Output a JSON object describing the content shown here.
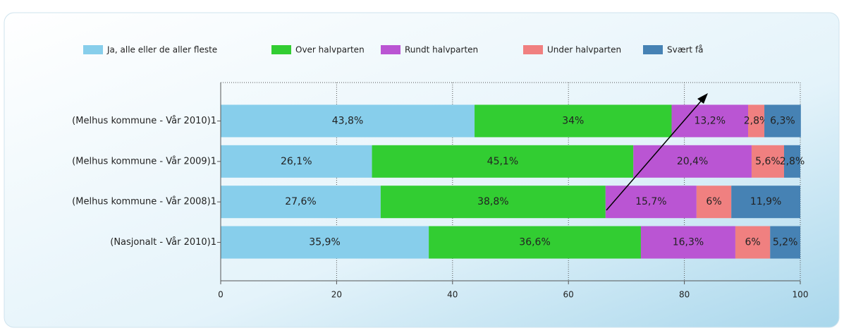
{
  "chart_data": {
    "type": "bar",
    "orientation": "horizontal",
    "stacked": true,
    "categories": [
      "(Melhus kommune - Vår 2010)1",
      "(Melhus kommune - Vår 2009)1",
      "(Melhus kommune - Vår 2008)1",
      "(Nasjonalt - Vår 2010)1"
    ],
    "series": [
      {
        "name": "Ja, alle eller de aller fleste",
        "color": "#87ceeb",
        "values": [
          43.8,
          26.1,
          27.6,
          35.9
        ],
        "value_labels": [
          "43,8%",
          "26,1%",
          "27,6%",
          "35,9%"
        ]
      },
      {
        "name": "Over halvparten",
        "color": "#32cd32",
        "values": [
          34,
          45.1,
          38.8,
          36.6
        ],
        "value_labels": [
          "34%",
          "45,1%",
          "38,8%",
          "36,6%"
        ]
      },
      {
        "name": "Rundt halvparten",
        "color": "#ba55d3",
        "values": [
          13.2,
          20.4,
          15.7,
          16.3
        ],
        "value_labels": [
          "13,2%",
          "20,4%",
          "15,7%",
          "16,3%"
        ]
      },
      {
        "name": "Under halvparten",
        "color": "#f08080",
        "values": [
          2.8,
          5.6,
          6,
          6
        ],
        "value_labels": [
          "2,8%",
          "5,6%",
          "6%",
          "6%"
        ]
      },
      {
        "name": "Svært få",
        "color": "#4682b4",
        "values": [
          6.3,
          2.8,
          11.9,
          5.2
        ],
        "value_labels": [
          "6,3%",
          "2,8%",
          "11,9%",
          "5,2%"
        ]
      }
    ],
    "xlim": [
      0,
      100
    ],
    "xticks": [
      0,
      20,
      40,
      60,
      80,
      100
    ],
    "grid": true,
    "legend": "top"
  }
}
